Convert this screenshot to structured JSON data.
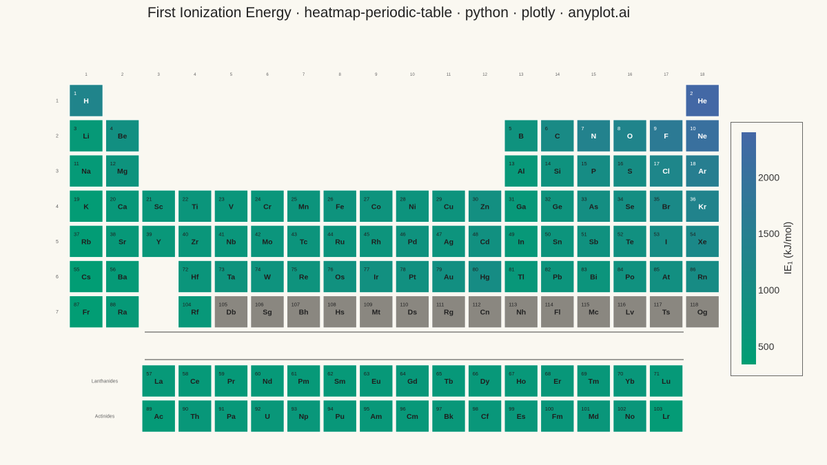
{
  "title": "First Ionization Energy · heatmap-periodic-table · python · plotly · anyplot.ai",
  "chart_data": {
    "type": "heatmap",
    "column_labels": [
      "1",
      "2",
      "3",
      "4",
      "5",
      "6",
      "7",
      "8",
      "9",
      "10",
      "11",
      "12",
      "13",
      "14",
      "15",
      "16",
      "17",
      "18"
    ],
    "row_labels": [
      "1",
      "2",
      "3",
      "4",
      "5",
      "6",
      "7"
    ],
    "series_labels": [
      "Lanthanides",
      "Actinides"
    ],
    "colorbar": {
      "title": "IE₁ (kJ/mol)",
      "ticks": [
        500,
        1000,
        1500,
        2000
      ],
      "range": [
        340,
        2400
      ],
      "colors": [
        "#009e73",
        "#4467a6"
      ]
    },
    "missing_color": "#8a8780",
    "elements": [
      {
        "z": 1,
        "s": "H",
        "r": 1,
        "c": 1,
        "v": 1312
      },
      {
        "z": 2,
        "s": "He",
        "r": 1,
        "c": 18,
        "v": 2372
      },
      {
        "z": 3,
        "s": "Li",
        "r": 2,
        "c": 1,
        "v": 520
      },
      {
        "z": 4,
        "s": "Be",
        "r": 2,
        "c": 2,
        "v": 900
      },
      {
        "z": 5,
        "s": "B",
        "r": 2,
        "c": 13,
        "v": 801
      },
      {
        "z": 6,
        "s": "C",
        "r": 2,
        "c": 14,
        "v": 1086
      },
      {
        "z": 7,
        "s": "N",
        "r": 2,
        "c": 15,
        "v": 1402
      },
      {
        "z": 8,
        "s": "O",
        "r": 2,
        "c": 16,
        "v": 1314
      },
      {
        "z": 9,
        "s": "F",
        "r": 2,
        "c": 17,
        "v": 1681
      },
      {
        "z": 10,
        "s": "Ne",
        "r": 2,
        "c": 18,
        "v": 2081
      },
      {
        "z": 11,
        "s": "Na",
        "r": 3,
        "c": 1,
        "v": 496
      },
      {
        "z": 12,
        "s": "Mg",
        "r": 3,
        "c": 2,
        "v": 738
      },
      {
        "z": 13,
        "s": "Al",
        "r": 3,
        "c": 13,
        "v": 578
      },
      {
        "z": 14,
        "s": "Si",
        "r": 3,
        "c": 14,
        "v": 787
      },
      {
        "z": 15,
        "s": "P",
        "r": 3,
        "c": 15,
        "v": 1012
      },
      {
        "z": 16,
        "s": "S",
        "r": 3,
        "c": 16,
        "v": 1000
      },
      {
        "z": 17,
        "s": "Cl",
        "r": 3,
        "c": 17,
        "v": 1251
      },
      {
        "z": 18,
        "s": "Ar",
        "r": 3,
        "c": 18,
        "v": 1521
      },
      {
        "z": 19,
        "s": "K",
        "r": 4,
        "c": 1,
        "v": 419
      },
      {
        "z": 20,
        "s": "Ca",
        "r": 4,
        "c": 2,
        "v": 590
      },
      {
        "z": 21,
        "s": "Sc",
        "r": 4,
        "c": 3,
        "v": 633
      },
      {
        "z": 22,
        "s": "Ti",
        "r": 4,
        "c": 4,
        "v": 659
      },
      {
        "z": 23,
        "s": "V",
        "r": 4,
        "c": 5,
        "v": 651
      },
      {
        "z": 24,
        "s": "Cr",
        "r": 4,
        "c": 6,
        "v": 653
      },
      {
        "z": 25,
        "s": "Mn",
        "r": 4,
        "c": 7,
        "v": 717
      },
      {
        "z": 26,
        "s": "Fe",
        "r": 4,
        "c": 8,
        "v": 763
      },
      {
        "z": 27,
        "s": "Co",
        "r": 4,
        "c": 9,
        "v": 760
      },
      {
        "z": 28,
        "s": "Ni",
        "r": 4,
        "c": 10,
        "v": 737
      },
      {
        "z": 29,
        "s": "Cu",
        "r": 4,
        "c": 11,
        "v": 745
      },
      {
        "z": 30,
        "s": "Zn",
        "r": 4,
        "c": 12,
        "v": 906
      },
      {
        "z": 31,
        "s": "Ga",
        "r": 4,
        "c": 13,
        "v": 579
      },
      {
        "z": 32,
        "s": "Ge",
        "r": 4,
        "c": 14,
        "v": 762
      },
      {
        "z": 33,
        "s": "As",
        "r": 4,
        "c": 15,
        "v": 947
      },
      {
        "z": 34,
        "s": "Se",
        "r": 4,
        "c": 16,
        "v": 941
      },
      {
        "z": 35,
        "s": "Br",
        "r": 4,
        "c": 17,
        "v": 1140
      },
      {
        "z": 36,
        "s": "Kr",
        "r": 4,
        "c": 18,
        "v": 1351
      },
      {
        "z": 37,
        "s": "Rb",
        "r": 5,
        "c": 1,
        "v": 403
      },
      {
        "z": 38,
        "s": "Sr",
        "r": 5,
        "c": 2,
        "v": 550
      },
      {
        "z": 39,
        "s": "Y",
        "r": 5,
        "c": 3,
        "v": 600
      },
      {
        "z": 40,
        "s": "Zr",
        "r": 5,
        "c": 4,
        "v": 640
      },
      {
        "z": 41,
        "s": "Nb",
        "r": 5,
        "c": 5,
        "v": 652
      },
      {
        "z": 42,
        "s": "Mo",
        "r": 5,
        "c": 6,
        "v": 684
      },
      {
        "z": 43,
        "s": "Tc",
        "r": 5,
        "c": 7,
        "v": 702
      },
      {
        "z": 44,
        "s": "Ru",
        "r": 5,
        "c": 8,
        "v": 710
      },
      {
        "z": 45,
        "s": "Rh",
        "r": 5,
        "c": 9,
        "v": 720
      },
      {
        "z": 46,
        "s": "Pd",
        "r": 5,
        "c": 10,
        "v": 804
      },
      {
        "z": 47,
        "s": "Ag",
        "r": 5,
        "c": 11,
        "v": 731
      },
      {
        "z": 48,
        "s": "Cd",
        "r": 5,
        "c": 12,
        "v": 868
      },
      {
        "z": 49,
        "s": "In",
        "r": 5,
        "c": 13,
        "v": 558
      },
      {
        "z": 50,
        "s": "Sn",
        "r": 5,
        "c": 14,
        "v": 709
      },
      {
        "z": 51,
        "s": "Sb",
        "r": 5,
        "c": 15,
        "v": 834
      },
      {
        "z": 52,
        "s": "Te",
        "r": 5,
        "c": 16,
        "v": 869
      },
      {
        "z": 53,
        "s": "I",
        "r": 5,
        "c": 17,
        "v": 1008
      },
      {
        "z": 54,
        "s": "Xe",
        "r": 5,
        "c": 18,
        "v": 1170
      },
      {
        "z": 55,
        "s": "Cs",
        "r": 6,
        "c": 1,
        "v": 376
      },
      {
        "z": 56,
        "s": "Ba",
        "r": 6,
        "c": 2,
        "v": 503
      },
      {
        "z": 72,
        "s": "Hf",
        "r": 6,
        "c": 4,
        "v": 659
      },
      {
        "z": 73,
        "s": "Ta",
        "r": 6,
        "c": 5,
        "v": 761
      },
      {
        "z": 74,
        "s": "W",
        "r": 6,
        "c": 6,
        "v": 770
      },
      {
        "z": 75,
        "s": "Re",
        "r": 6,
        "c": 7,
        "v": 760
      },
      {
        "z": 76,
        "s": "Os",
        "r": 6,
        "c": 8,
        "v": 840
      },
      {
        "z": 77,
        "s": "Ir",
        "r": 6,
        "c": 9,
        "v": 880
      },
      {
        "z": 78,
        "s": "Pt",
        "r": 6,
        "c": 10,
        "v": 870
      },
      {
        "z": 79,
        "s": "Au",
        "r": 6,
        "c": 11,
        "v": 890
      },
      {
        "z": 80,
        "s": "Hg",
        "r": 6,
        "c": 12,
        "v": 1007
      },
      {
        "z": 81,
        "s": "Tl",
        "r": 6,
        "c": 13,
        "v": 589
      },
      {
        "z": 82,
        "s": "Pb",
        "r": 6,
        "c": 14,
        "v": 716
      },
      {
        "z": 83,
        "s": "Bi",
        "r": 6,
        "c": 15,
        "v": 703
      },
      {
        "z": 84,
        "s": "Po",
        "r": 6,
        "c": 16,
        "v": 812
      },
      {
        "z": 85,
        "s": "At",
        "r": 6,
        "c": 17,
        "v": 899
      },
      {
        "z": 86,
        "s": "Rn",
        "r": 6,
        "c": 18,
        "v": 1037
      },
      {
        "z": 87,
        "s": "Fr",
        "r": 7,
        "c": 1,
        "v": 393
      },
      {
        "z": 88,
        "s": "Ra",
        "r": 7,
        "c": 2,
        "v": 509
      },
      {
        "z": 104,
        "s": "Rf",
        "r": 7,
        "c": 4,
        "v": 580
      },
      {
        "z": 105,
        "s": "Db",
        "r": 7,
        "c": 5,
        "v": null
      },
      {
        "z": 106,
        "s": "Sg",
        "r": 7,
        "c": 6,
        "v": null
      },
      {
        "z": 107,
        "s": "Bh",
        "r": 7,
        "c": 7,
        "v": null
      },
      {
        "z": 108,
        "s": "Hs",
        "r": 7,
        "c": 8,
        "v": null
      },
      {
        "z": 109,
        "s": "Mt",
        "r": 7,
        "c": 9,
        "v": null
      },
      {
        "z": 110,
        "s": "Ds",
        "r": 7,
        "c": 10,
        "v": null
      },
      {
        "z": 111,
        "s": "Rg",
        "r": 7,
        "c": 11,
        "v": null
      },
      {
        "z": 112,
        "s": "Cn",
        "r": 7,
        "c": 12,
        "v": null
      },
      {
        "z": 113,
        "s": "Nh",
        "r": 7,
        "c": 13,
        "v": null
      },
      {
        "z": 114,
        "s": "Fl",
        "r": 7,
        "c": 14,
        "v": null
      },
      {
        "z": 115,
        "s": "Mc",
        "r": 7,
        "c": 15,
        "v": null
      },
      {
        "z": 116,
        "s": "Lv",
        "r": 7,
        "c": 16,
        "v": null
      },
      {
        "z": 117,
        "s": "Ts",
        "r": 7,
        "c": 17,
        "v": null
      },
      {
        "z": 118,
        "s": "Og",
        "r": 7,
        "c": 18,
        "v": null
      },
      {
        "z": 57,
        "s": "La",
        "r": "Lanthanides",
        "c": 3,
        "v": 538
      },
      {
        "z": 58,
        "s": "Ce",
        "r": "Lanthanides",
        "c": 4,
        "v": 534
      },
      {
        "z": 59,
        "s": "Pr",
        "r": "Lanthanides",
        "c": 5,
        "v": 527
      },
      {
        "z": 60,
        "s": "Nd",
        "r": "Lanthanides",
        "c": 6,
        "v": 533
      },
      {
        "z": 61,
        "s": "Pm",
        "r": "Lanthanides",
        "c": 7,
        "v": 540
      },
      {
        "z": 62,
        "s": "Sm",
        "r": "Lanthanides",
        "c": 8,
        "v": 545
      },
      {
        "z": 63,
        "s": "Eu",
        "r": "Lanthanides",
        "c": 9,
        "v": 547
      },
      {
        "z": 64,
        "s": "Gd",
        "r": "Lanthanides",
        "c": 10,
        "v": 593
      },
      {
        "z": 65,
        "s": "Tb",
        "r": "Lanthanides",
        "c": 11,
        "v": 566
      },
      {
        "z": 66,
        "s": "Dy",
        "r": "Lanthanides",
        "c": 12,
        "v": 573
      },
      {
        "z": 67,
        "s": "Ho",
        "r": "Lanthanides",
        "c": 13,
        "v": 581
      },
      {
        "z": 68,
        "s": "Er",
        "r": "Lanthanides",
        "c": 14,
        "v": 589
      },
      {
        "z": 69,
        "s": "Tm",
        "r": "Lanthanides",
        "c": 15,
        "v": 597
      },
      {
        "z": 70,
        "s": "Yb",
        "r": "Lanthanides",
        "c": 16,
        "v": 603
      },
      {
        "z": 71,
        "s": "Lu",
        "r": "Lanthanides",
        "c": 17,
        "v": 524
      },
      {
        "z": 89,
        "s": "Ac",
        "r": "Actinides",
        "c": 3,
        "v": 499
      },
      {
        "z": 90,
        "s": "Th",
        "r": "Actinides",
        "c": 4,
        "v": 587
      },
      {
        "z": 91,
        "s": "Pa",
        "r": "Actinides",
        "c": 5,
        "v": 568
      },
      {
        "z": 92,
        "s": "U",
        "r": "Actinides",
        "c": 6,
        "v": 598
      },
      {
        "z": 93,
        "s": "Np",
        "r": "Actinides",
        "c": 7,
        "v": 605
      },
      {
        "z": 94,
        "s": "Pu",
        "r": "Actinides",
        "c": 8,
        "v": 585
      },
      {
        "z": 95,
        "s": "Am",
        "r": "Actinides",
        "c": 9,
        "v": 578
      },
      {
        "z": 96,
        "s": "Cm",
        "r": "Actinides",
        "c": 10,
        "v": 581
      },
      {
        "z": 97,
        "s": "Bk",
        "r": "Actinides",
        "c": 11,
        "v": 601
      },
      {
        "z": 98,
        "s": "Cf",
        "r": "Actinides",
        "c": 12,
        "v": 608
      },
      {
        "z": 99,
        "s": "Es",
        "r": "Actinides",
        "c": 13,
        "v": 619
      },
      {
        "z": 100,
        "s": "Fm",
        "r": "Actinides",
        "c": 14,
        "v": 627
      },
      {
        "z": 101,
        "s": "Md",
        "r": "Actinides",
        "c": 15,
        "v": 635
      },
      {
        "z": 102,
        "s": "No",
        "r": "Actinides",
        "c": 16,
        "v": 642
      },
      {
        "z": 103,
        "s": "Lr",
        "r": "Actinides",
        "c": 17,
        "v": 470
      }
    ]
  }
}
